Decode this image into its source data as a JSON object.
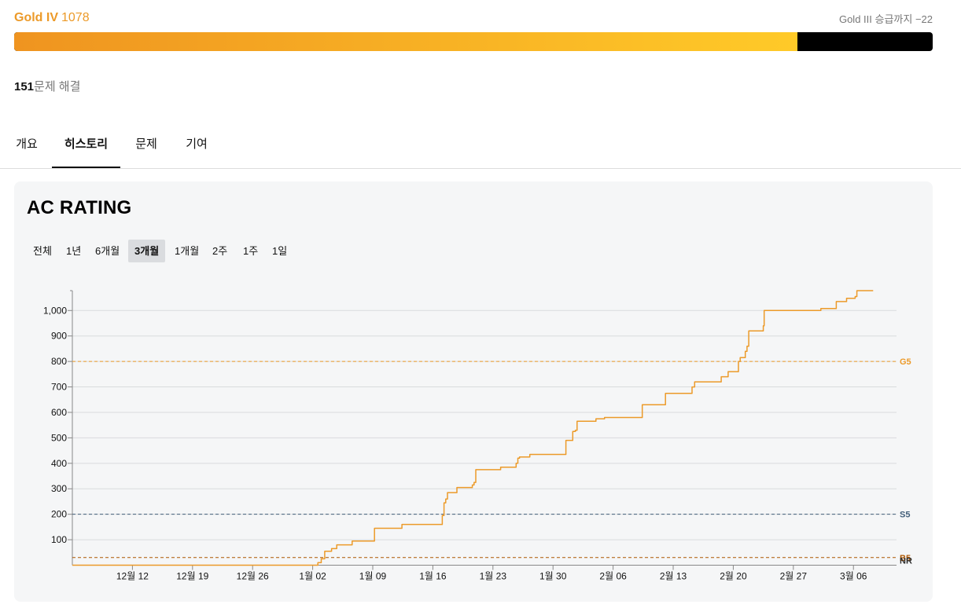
{
  "tier": {
    "name": "Gold IV",
    "rating": "1078",
    "promotion": "Gold III 승급까지 −22",
    "progress": 0.853
  },
  "solved": {
    "count": "151",
    "suffix": "문제 해결"
  },
  "tabs": [
    {
      "label": "개요"
    },
    {
      "label": "히스토리"
    },
    {
      "label": "문제"
    },
    {
      "label": "기여"
    }
  ],
  "card": {
    "title": "AC RATING",
    "ranges": [
      "전체",
      "1년",
      "6개월",
      "3개월",
      "1개월",
      "2주",
      "1주",
      "1일"
    ],
    "active_range": "3개월"
  },
  "colors": {
    "line": "#ec9a29",
    "gold": "#ec9a29",
    "silver": "#435f7a",
    "bronze": "#ad5600",
    "grid": "#d9dbdd"
  },
  "chart_data": {
    "type": "line",
    "title": "AC RATING",
    "xlabel": "",
    "ylabel": "",
    "x_range_days": [
      0,
      96
    ],
    "ylim": [
      0,
      1078
    ],
    "y_ticks": [
      100,
      200,
      300,
      400,
      500,
      600,
      700,
      800,
      900,
      1000
    ],
    "y_tick_labels": [
      "100",
      "200",
      "300",
      "400",
      "500",
      "600",
      "700",
      "800",
      "900",
      "1,000"
    ],
    "x_ticks": [
      {
        "day": 7,
        "label": "12월 12"
      },
      {
        "day": 14,
        "label": "12월 19"
      },
      {
        "day": 21,
        "label": "12월 26"
      },
      {
        "day": 28,
        "label": "1월 02"
      },
      {
        "day": 35,
        "label": "1월 09"
      },
      {
        "day": 42,
        "label": "1월 16"
      },
      {
        "day": 49,
        "label": "1월 23"
      },
      {
        "day": 56,
        "label": "1월 30"
      },
      {
        "day": 63,
        "label": "2월 06"
      },
      {
        "day": 70,
        "label": "2월 13"
      },
      {
        "day": 77,
        "label": "2월 20"
      },
      {
        "day": 84,
        "label": "2월 27"
      },
      {
        "day": 91,
        "label": "3월 06"
      }
    ],
    "tier_lines": [
      {
        "label": "G5",
        "value": 800,
        "color": "#ec9a29"
      },
      {
        "label": "S5",
        "value": 200,
        "color": "#435f7a"
      },
      {
        "label": "B5",
        "value": 30,
        "color": "#ad5600"
      },
      {
        "label": "NR",
        "value": 0,
        "color": "#2d2d2d"
      }
    ],
    "series": [
      {
        "name": "AC Rating",
        "points": [
          [
            0,
            0
          ],
          [
            28.2,
            0
          ],
          [
            28.6,
            10
          ],
          [
            29.0,
            25
          ],
          [
            29.4,
            55
          ],
          [
            30.2,
            65
          ],
          [
            30.8,
            80
          ],
          [
            32.6,
            95
          ],
          [
            35.0,
            95
          ],
          [
            35.2,
            145
          ],
          [
            38.2,
            145
          ],
          [
            38.4,
            160
          ],
          [
            42.8,
            160
          ],
          [
            43.1,
            195
          ],
          [
            43.3,
            245
          ],
          [
            43.5,
            260
          ],
          [
            43.7,
            285
          ],
          [
            44.6,
            285
          ],
          [
            44.8,
            305
          ],
          [
            46.4,
            305
          ],
          [
            46.6,
            315
          ],
          [
            46.8,
            325
          ],
          [
            47.0,
            375
          ],
          [
            49.7,
            375
          ],
          [
            49.9,
            385
          ],
          [
            51.5,
            385
          ],
          [
            51.7,
            400
          ],
          [
            51.9,
            420
          ],
          [
            52.1,
            425
          ],
          [
            53.1,
            425
          ],
          [
            53.3,
            435
          ],
          [
            57.3,
            435
          ],
          [
            57.5,
            490
          ],
          [
            58.1,
            490
          ],
          [
            58.3,
            525
          ],
          [
            58.6,
            530
          ],
          [
            58.8,
            565
          ],
          [
            60.8,
            565
          ],
          [
            61.0,
            575
          ],
          [
            61.8,
            575
          ],
          [
            62.0,
            580
          ],
          [
            66.2,
            580
          ],
          [
            66.4,
            630
          ],
          [
            68.9,
            630
          ],
          [
            69.1,
            675
          ],
          [
            72.0,
            675
          ],
          [
            72.2,
            700
          ],
          [
            72.5,
            720
          ],
          [
            75.4,
            720
          ],
          [
            75.6,
            740
          ],
          [
            76.2,
            740
          ],
          [
            76.4,
            760
          ],
          [
            77.4,
            760
          ],
          [
            77.6,
            800
          ],
          [
            77.8,
            815
          ],
          [
            78.2,
            815
          ],
          [
            78.4,
            840
          ],
          [
            78.6,
            860
          ],
          [
            78.8,
            920
          ],
          [
            80.4,
            920
          ],
          [
            80.5,
            940
          ],
          [
            80.6,
            1000
          ],
          [
            87.0,
            1000
          ],
          [
            87.2,
            1008
          ],
          [
            88.8,
            1008
          ],
          [
            89.0,
            1035
          ],
          [
            90.0,
            1035
          ],
          [
            90.2,
            1048
          ],
          [
            91.0,
            1048
          ],
          [
            91.2,
            1055
          ],
          [
            91.4,
            1078
          ],
          [
            93.3,
            1078
          ]
        ]
      }
    ]
  }
}
